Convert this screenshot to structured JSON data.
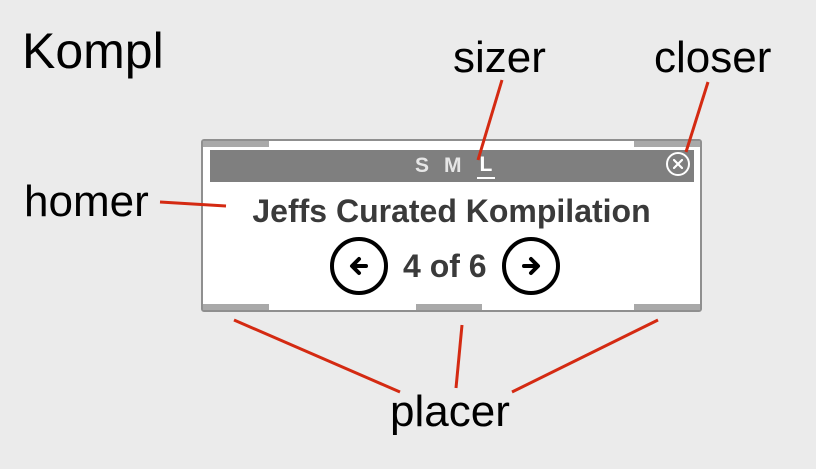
{
  "diagram": {
    "title": "Kompl",
    "callouts": {
      "sizer": "sizer",
      "closer": "closer",
      "homer": "homer",
      "placer": "placer"
    },
    "callout_color": "#d42a12"
  },
  "widget": {
    "sizes": [
      "S",
      "M",
      "L"
    ],
    "active_size": "L",
    "close_icon": "close-circle-icon",
    "title": "Jeffs Curated Kompilation",
    "counter": {
      "current": "4",
      "of": "of",
      "total": "6"
    },
    "prev_icon": "arrow-left-circle-icon",
    "next_icon": "arrow-right-circle-icon"
  }
}
